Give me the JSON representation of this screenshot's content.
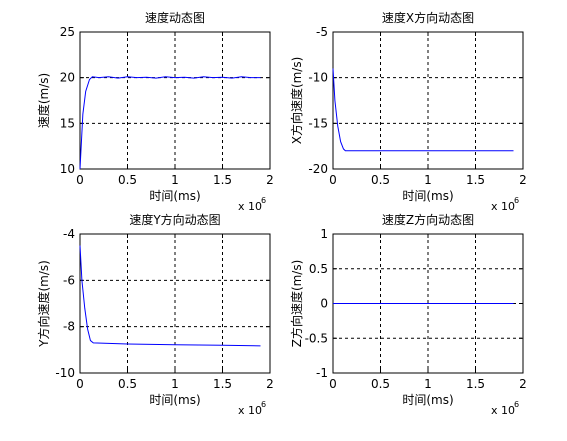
{
  "chart_data": [
    {
      "type": "line",
      "title": "速度动态图",
      "xlabel": "时间(ms)",
      "ylabel": "速度(m/s)",
      "x_multiplier": "x 10",
      "x_multiplier_exponent": "6",
      "xlim": [
        0,
        2
      ],
      "ylim": [
        10,
        25
      ],
      "xticks": [
        "0",
        "0.5",
        "1",
        "1.5",
        "2"
      ],
      "yticks": [
        "10",
        "15",
        "20",
        "25"
      ],
      "grid": true,
      "series": [
        {
          "x": [
            0.0,
            0.03,
            0.06,
            0.1,
            0.13,
            0.2,
            0.3,
            0.4,
            0.5,
            0.6,
            0.7,
            0.8,
            0.9,
            1.0,
            1.1,
            1.2,
            1.3,
            1.4,
            1.5,
            1.6,
            1.7,
            1.8,
            1.9
          ],
          "y": [
            10.0,
            16.0,
            18.5,
            19.8,
            20.1,
            20.0,
            20.1,
            19.95,
            20.1,
            20.0,
            20.05,
            19.95,
            20.1,
            20.0,
            20.05,
            19.95,
            20.1,
            20.0,
            20.05,
            19.95,
            20.1,
            20.0,
            20.0
          ]
        }
      ]
    },
    {
      "type": "line",
      "title": "速度X方向动态图",
      "xlabel": "时间(ms)",
      "ylabel": "X方向速度(m/s)",
      "x_multiplier": "x 10",
      "x_multiplier_exponent": "6",
      "xlim": [
        0,
        2
      ],
      "ylim": [
        -20,
        -5
      ],
      "xticks": [
        "0",
        "0.5",
        "1",
        "1.5",
        "2"
      ],
      "yticks": [
        "-20",
        "-15",
        "-10",
        "-5"
      ],
      "grid": true,
      "series": [
        {
          "x": [
            0.0,
            0.02,
            0.05,
            0.08,
            0.11,
            0.13,
            0.5,
            1.0,
            1.5,
            1.9
          ],
          "y": [
            -9.0,
            -12.5,
            -15.3,
            -17.0,
            -17.8,
            -18.0,
            -18.0,
            -18.0,
            -18.0,
            -18.0
          ]
        }
      ]
    },
    {
      "type": "line",
      "title": "速度Y方向动态图",
      "xlabel": "时间(ms)",
      "ylabel": "Y方向速度(m/s)",
      "x_multiplier": "x 10",
      "x_multiplier_exponent": "6",
      "xlim": [
        0,
        2
      ],
      "ylim": [
        -10,
        -4
      ],
      "xticks": [
        "0",
        "0.5",
        "1",
        "1.5",
        "2"
      ],
      "yticks": [
        "-10",
        "-8",
        "-6",
        "-4"
      ],
      "grid": true,
      "series": [
        {
          "x": [
            0.0,
            0.02,
            0.05,
            0.08,
            0.11,
            0.14,
            0.3,
            0.5,
            1.0,
            1.5,
            1.9
          ],
          "y": [
            -4.5,
            -6.0,
            -7.2,
            -8.1,
            -8.6,
            -8.7,
            -8.72,
            -8.75,
            -8.78,
            -8.8,
            -8.83
          ]
        }
      ]
    },
    {
      "type": "line",
      "title": "速度Z方向动态图",
      "xlabel": "时间(ms)",
      "ylabel": "Z方向速度(m/s)",
      "x_multiplier": "x 10",
      "x_multiplier_exponent": "6",
      "xlim": [
        0,
        2
      ],
      "ylim": [
        -1,
        1
      ],
      "xticks": [
        "0",
        "0.5",
        "1",
        "1.5",
        "2"
      ],
      "yticks": [
        "-1",
        "-0.5",
        "0",
        "0.5",
        "1"
      ],
      "grid": true,
      "series": [
        {
          "x": [
            0.0,
            0.5,
            1.0,
            1.5,
            1.9
          ],
          "y": [
            0.0,
            0.0,
            0.0,
            0.0,
            0.0
          ]
        }
      ]
    }
  ],
  "colors": {
    "series": "#0000ff",
    "axes": "#000000",
    "background": "#ffffff"
  }
}
